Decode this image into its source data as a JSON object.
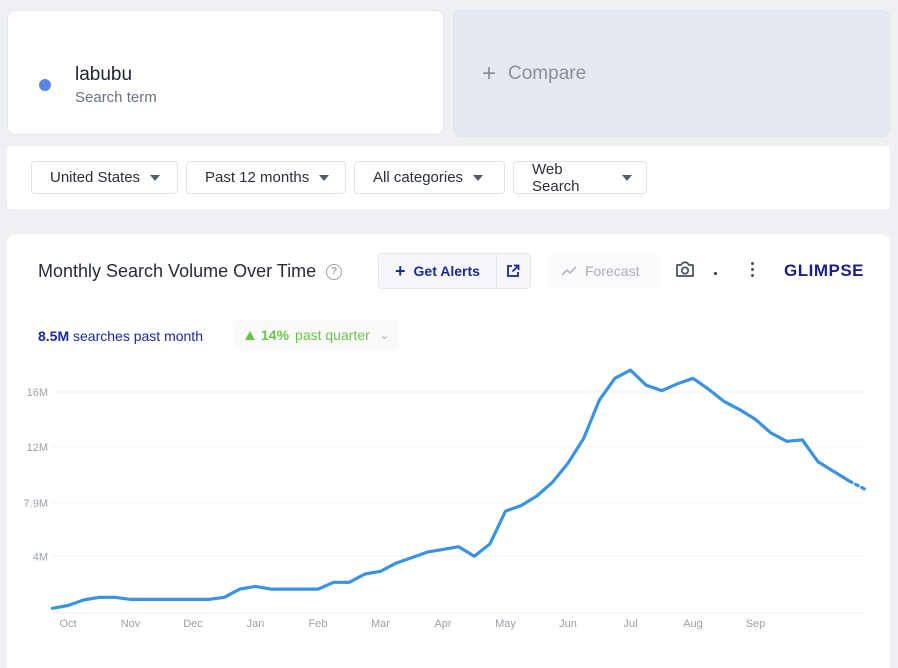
{
  "term": {
    "name": "labubu",
    "subtitle": "Search term",
    "color": "#5b87e8"
  },
  "compare": {
    "label": "Compare",
    "icon": "plus-icon"
  },
  "filters": [
    {
      "label": "United States"
    },
    {
      "label": "Past 12 months"
    },
    {
      "label": "All categories"
    },
    {
      "label": "Web Search"
    }
  ],
  "chart_header": {
    "title": "Monthly Search Volume Over Time",
    "alerts_label": "Get Alerts",
    "forecast_label": "Forecast",
    "logo_text": "GLIMPSE"
  },
  "stats": {
    "volume_value": "8.5M",
    "volume_suffix": "searches past month",
    "change_value": "14%",
    "change_suffix": "past quarter"
  },
  "chart_data": {
    "type": "line",
    "title": "Monthly Search Volume Over Time",
    "x_tick_labels": [
      "Oct",
      "Nov",
      "Dec",
      "Jan",
      "Feb",
      "Mar",
      "Apr",
      "May",
      "Jun",
      "Jul",
      "Aug",
      "Sep"
    ],
    "y_tick_labels": [
      "4M",
      "7.9M",
      "12M",
      "16M"
    ],
    "y_tick_values": [
      4000000,
      7900000,
      12000000,
      16000000
    ],
    "ylim": [
      0,
      16000000
    ],
    "grid": true,
    "color": "#3a93e0",
    "x_unit": "months since start (0 = Oct 1)",
    "series": [
      {
        "name": "labubu",
        "points": [
          [
            -0.25,
            0.2
          ],
          [
            0.0,
            0.4
          ],
          [
            0.25,
            0.8
          ],
          [
            0.5,
            1.0
          ],
          [
            0.75,
            1.0
          ],
          [
            1.0,
            0.85
          ],
          [
            1.5,
            0.85
          ],
          [
            2.0,
            0.85
          ],
          [
            2.25,
            0.85
          ],
          [
            2.5,
            1.0
          ],
          [
            2.75,
            1.6
          ],
          [
            3.0,
            1.8
          ],
          [
            3.25,
            1.6
          ],
          [
            3.5,
            1.6
          ],
          [
            3.75,
            1.6
          ],
          [
            4.0,
            1.6
          ],
          [
            4.25,
            2.1
          ],
          [
            4.5,
            2.1
          ],
          [
            4.75,
            2.7
          ],
          [
            5.0,
            2.9
          ],
          [
            5.25,
            3.5
          ],
          [
            5.5,
            3.9
          ],
          [
            5.75,
            4.3
          ],
          [
            6.0,
            4.5
          ],
          [
            6.25,
            4.7
          ],
          [
            6.5,
            4.0
          ],
          [
            6.75,
            4.9
          ],
          [
            7.0,
            7.3
          ],
          [
            7.25,
            7.7
          ],
          [
            7.5,
            8.4
          ],
          [
            7.75,
            9.4
          ],
          [
            8.0,
            10.8
          ],
          [
            8.25,
            12.6
          ],
          [
            8.5,
            15.4
          ],
          [
            8.75,
            17.0
          ],
          [
            9.0,
            17.6
          ],
          [
            9.25,
            16.5
          ],
          [
            9.5,
            16.1
          ],
          [
            9.75,
            16.6
          ],
          [
            10.0,
            17.0
          ],
          [
            10.25,
            16.2
          ],
          [
            10.5,
            15.3
          ],
          [
            10.75,
            14.7
          ],
          [
            11.0,
            14.0
          ],
          [
            11.25,
            13.0
          ],
          [
            11.5,
            12.4
          ],
          [
            11.75,
            12.5
          ],
          [
            12.0,
            10.9
          ],
          [
            12.25,
            10.2
          ],
          [
            12.5,
            9.5
          ]
        ],
        "projected": [
          [
            12.5,
            9.5
          ],
          [
            12.75,
            8.9
          ]
        ]
      }
    ]
  }
}
